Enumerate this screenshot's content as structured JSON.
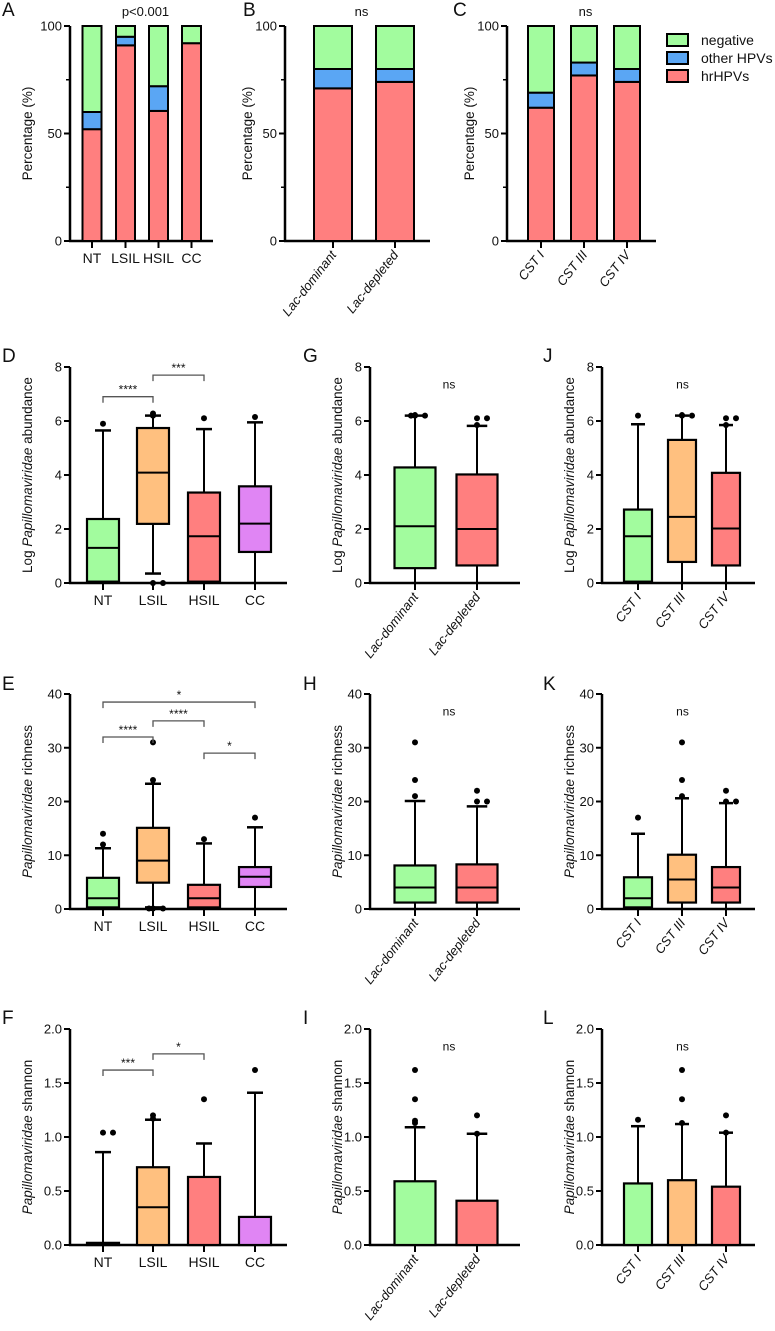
{
  "legend": {
    "items": [
      {
        "label": "negative",
        "color": "#a2fc9e"
      },
      {
        "label": "other HPVs",
        "color": "#5aa6f4"
      },
      {
        "label": "hrHPVs",
        "color": "#ff7f7f"
      }
    ]
  },
  "chart_data": [
    {
      "panel": "A",
      "type": "bar",
      "stacked": true,
      "annotation": "p<0.001",
      "ylabel": {
        "prefix": "Percentage (%)",
        "italic": "",
        "suffix": ""
      },
      "ylim": [
        0,
        100
      ],
      "yticks": [
        "0",
        "50",
        "100"
      ],
      "ytick_values": [
        0,
        50,
        100
      ],
      "minor_ticks": [
        25,
        75
      ],
      "categories": [
        "NT",
        "LSIL",
        "HSIL",
        "CC"
      ],
      "series": [
        {
          "name": "hrHPVs",
          "values": [
            52,
            91,
            60.5,
            92
          ]
        },
        {
          "name": "other HPVs",
          "values": [
            8,
            4,
            11.5,
            0
          ]
        },
        {
          "name": "negative",
          "values": [
            40,
            5,
            28,
            8
          ]
        }
      ]
    },
    {
      "panel": "B",
      "type": "bar",
      "stacked": true,
      "annotation": "ns",
      "ylabel": {
        "prefix": "Percentage (%)",
        "italic": "",
        "suffix": ""
      },
      "ylim": [
        0,
        100
      ],
      "yticks": [
        "0",
        "50",
        "100"
      ],
      "ytick_values": [
        0,
        50,
        100
      ],
      "minor_ticks": [
        25,
        75
      ],
      "categories": [
        "Lac-dominant",
        "Lac-depleted"
      ],
      "series": [
        {
          "name": "hrHPVs",
          "values": [
            71,
            74
          ]
        },
        {
          "name": "other HPVs",
          "values": [
            9,
            6
          ]
        },
        {
          "name": "negative",
          "values": [
            20,
            20
          ]
        }
      ]
    },
    {
      "panel": "C",
      "type": "bar",
      "stacked": true,
      "annotation": "ns",
      "ylabel": {
        "prefix": "Percentage (%)",
        "italic": "",
        "suffix": ""
      },
      "ylim": [
        0,
        100
      ],
      "yticks": [
        "0",
        "50",
        "100"
      ],
      "ytick_values": [
        0,
        50,
        100
      ],
      "minor_ticks": [
        25,
        75
      ],
      "categories": [
        "CST I",
        "CST III",
        "CST IV"
      ],
      "series": [
        {
          "name": "hrHPVs",
          "values": [
            62,
            77,
            74
          ]
        },
        {
          "name": "other HPVs",
          "values": [
            7,
            6,
            6
          ]
        },
        {
          "name": "negative",
          "values": [
            31,
            17,
            20
          ]
        }
      ]
    },
    {
      "panel": "D",
      "type": "box",
      "annotation": "",
      "ylabel": {
        "prefix": "Log ",
        "italic": "Papillomaviridae",
        "suffix": " abundance"
      },
      "ylim": [
        0,
        8
      ],
      "yticks": [
        "0",
        "2",
        "4",
        "6",
        "8"
      ],
      "ytick_values": [
        0,
        2,
        4,
        6,
        8
      ],
      "categories": [
        "NT",
        "LSIL",
        "HSIL",
        "CC"
      ],
      "colors": [
        "#a2fc9e",
        "#ffc07f",
        "#ff7f7f",
        "#e085f4"
      ],
      "boxes": [
        {
          "q1": 0.05,
          "median": 1.3,
          "q3": 2.37,
          "wlow": 0,
          "whigh": 5.65,
          "outliers": [
            5.9
          ]
        },
        {
          "q1": 2.19,
          "median": 4.09,
          "q3": 5.74,
          "wlow": 0.35,
          "whigh": 6.2,
          "outliers": [
            6.2,
            6.28,
            0,
            0
          ]
        },
        {
          "q1": 0.05,
          "median": 1.73,
          "q3": 3.35,
          "wlow": 0,
          "whigh": 5.7,
          "outliers": [
            6.1
          ]
        },
        {
          "q1": 1.15,
          "median": 2.2,
          "q3": 3.58,
          "wlow": 0,
          "whigh": 5.95,
          "outliers": [
            6.15
          ]
        }
      ],
      "comparisons": [
        {
          "from": 0,
          "to": 1,
          "label": "****",
          "y": 6.9
        },
        {
          "from": 1,
          "to": 2,
          "label": "***",
          "y": 7.7
        }
      ]
    },
    {
      "panel": "G",
      "type": "box",
      "annotation": "ns",
      "ylabel": {
        "prefix": "Log ",
        "italic": "Papillomaviridae",
        "suffix": " abundance"
      },
      "ylim": [
        0,
        8
      ],
      "yticks": [
        "0",
        "2",
        "4",
        "6",
        "8"
      ],
      "ytick_values": [
        0,
        2,
        4,
        6,
        8
      ],
      "categories": [
        "Lac-dominant",
        "Lac-depleted"
      ],
      "colors": [
        "#a2fc9e",
        "#ff7f7f"
      ],
      "boxes": [
        {
          "q1": 0.55,
          "median": 2.1,
          "q3": 4.28,
          "wlow": 0,
          "whigh": 6.2,
          "outliers": [
            6.2,
            6.22,
            6.2,
            6.2
          ]
        },
        {
          "q1": 0.65,
          "median": 2.0,
          "q3": 4.02,
          "wlow": 0,
          "whigh": 5.82,
          "outliers": [
            5.85,
            6.1,
            6.1
          ]
        }
      ],
      "comparisons": []
    },
    {
      "panel": "J",
      "type": "box",
      "annotation": "ns",
      "ylabel": {
        "prefix": "Log ",
        "italic": "Papillomaviridae",
        "suffix": " abundance"
      },
      "ylim": [
        0,
        8
      ],
      "yticks": [
        "0",
        "2",
        "4",
        "6",
        "8"
      ],
      "ytick_values": [
        0,
        2,
        4,
        6,
        8
      ],
      "categories": [
        "CST I",
        "CST III",
        "CST IV"
      ],
      "colors": [
        "#a2fc9e",
        "#ffc07f",
        "#ff7f7f"
      ],
      "boxes": [
        {
          "q1": 0.05,
          "median": 1.73,
          "q3": 2.72,
          "wlow": 0,
          "whigh": 5.88,
          "outliers": [
            6.2
          ]
        },
        {
          "q1": 0.78,
          "median": 2.45,
          "q3": 5.3,
          "wlow": 0,
          "whigh": 6.2,
          "outliers": [
            6.2,
            6.22,
            6.2
          ]
        },
        {
          "q1": 0.65,
          "median": 2.02,
          "q3": 4.08,
          "wlow": 0,
          "whigh": 5.85,
          "outliers": [
            5.85,
            6.1,
            6.1
          ]
        }
      ],
      "comparisons": []
    },
    {
      "panel": "E",
      "type": "box",
      "annotation": "",
      "ylabel": {
        "prefix": "",
        "italic": "Papillomaviridae",
        "suffix": " richness"
      },
      "ylim": [
        0,
        40
      ],
      "yticks": [
        "0",
        "10",
        "20",
        "30",
        "40"
      ],
      "ytick_values": [
        0,
        10,
        20,
        30,
        40
      ],
      "categories": [
        "NT",
        "LSIL",
        "HSIL",
        "CC"
      ],
      "colors": [
        "#a2fc9e",
        "#ffc07f",
        "#ff7f7f",
        "#e085f4"
      ],
      "boxes": [
        {
          "q1": 0.3,
          "median": 2,
          "q3": 5.8,
          "wlow": 0,
          "whigh": 11.3,
          "outliers": [
            12,
            14
          ]
        },
        {
          "q1": 4.9,
          "median": 9,
          "q3": 15.1,
          "wlow": 0.3,
          "whigh": 23.3,
          "outliers": [
            24,
            31,
            0.1,
            0.1,
            0.1
          ]
        },
        {
          "q1": 0.3,
          "median": 2,
          "q3": 4.5,
          "wlow": 0,
          "whigh": 12.2,
          "outliers": [
            13
          ]
        },
        {
          "q1": 4.1,
          "median": 6,
          "q3": 7.8,
          "wlow": 0,
          "whigh": 15.2,
          "outliers": [
            17
          ]
        }
      ],
      "comparisons": [
        {
          "from": 0,
          "to": 1,
          "label": "****",
          "y": 32
        },
        {
          "from": 1,
          "to": 2,
          "label": "****",
          "y": 35
        },
        {
          "from": 0,
          "to": 3,
          "label": "*",
          "y": 38.5
        },
        {
          "from": 2,
          "to": 3,
          "label": "*",
          "y": 29
        }
      ]
    },
    {
      "panel": "H",
      "type": "box",
      "annotation": "ns",
      "ylabel": {
        "prefix": "",
        "italic": "Papillomaviridae",
        "suffix": " richness"
      },
      "ylim": [
        0,
        40
      ],
      "yticks": [
        "0",
        "10",
        "20",
        "30",
        "40"
      ],
      "ytick_values": [
        0,
        10,
        20,
        30,
        40
      ],
      "categories": [
        "Lac-dominant",
        "Lac-depleted"
      ],
      "colors": [
        "#a2fc9e",
        "#ff7f7f"
      ],
      "boxes": [
        {
          "q1": 1.2,
          "median": 4,
          "q3": 8.1,
          "wlow": 0,
          "whigh": 20.1,
          "outliers": [
            21,
            24,
            31
          ]
        },
        {
          "q1": 1.2,
          "median": 4,
          "q3": 8.3,
          "wlow": 0,
          "whigh": 19.1,
          "outliers": [
            20,
            20,
            22
          ]
        }
      ],
      "comparisons": []
    },
    {
      "panel": "K",
      "type": "box",
      "annotation": "ns",
      "ylabel": {
        "prefix": "",
        "italic": "Papillomaviridae",
        "suffix": " richness"
      },
      "ylim": [
        0,
        40
      ],
      "yticks": [
        "0",
        "10",
        "20",
        "30",
        "40"
      ],
      "ytick_values": [
        0,
        10,
        20,
        30,
        40
      ],
      "categories": [
        "CST I",
        "CST III",
        "CST IV"
      ],
      "colors": [
        "#a2fc9e",
        "#ffc07f",
        "#ff7f7f"
      ],
      "boxes": [
        {
          "q1": 0.3,
          "median": 2,
          "q3": 5.9,
          "wlow": 0,
          "whigh": 14,
          "outliers": [
            17
          ]
        },
        {
          "q1": 1.2,
          "median": 5.5,
          "q3": 10.1,
          "wlow": 0,
          "whigh": 20.6,
          "outliers": [
            21,
            24,
            31
          ]
        },
        {
          "q1": 1.2,
          "median": 4,
          "q3": 7.8,
          "wlow": 0,
          "whigh": 19.7,
          "outliers": [
            20,
            20,
            22
          ]
        }
      ],
      "comparisons": []
    },
    {
      "panel": "F",
      "type": "box",
      "annotation": "",
      "ylabel": {
        "prefix": "",
        "italic": "Papillomaviridae",
        "suffix": " shannon"
      },
      "ylim": [
        0,
        2
      ],
      "yticks": [
        "0.0",
        "0.5",
        "1.0",
        "1.5",
        "2.0"
      ],
      "ytick_values": [
        0,
        0.5,
        1,
        1.5,
        2
      ],
      "categories": [
        "NT",
        "LSIL",
        "HSIL",
        "CC"
      ],
      "colors": [
        "#a2fc9e",
        "#ffc07f",
        "#ff7f7f",
        "#e085f4"
      ],
      "boxes": [
        {
          "q1": 0,
          "median": 0,
          "q3": 0.02,
          "wlow": 0,
          "whigh": 0.86,
          "outliers": [
            1.04,
            1.04
          ]
        },
        {
          "q1": 0,
          "median": 0.35,
          "q3": 0.72,
          "wlow": 0,
          "whigh": 1.16,
          "outliers": [
            1.17,
            1.2
          ]
        },
        {
          "q1": 0,
          "median": 0,
          "q3": 0.63,
          "wlow": 0,
          "whigh": 0.94,
          "outliers": [
            1.35
          ]
        },
        {
          "q1": 0,
          "median": 0,
          "q3": 0.26,
          "wlow": 0,
          "whigh": 1.41,
          "outliers": [
            1.62
          ]
        }
      ],
      "comparisons": [
        {
          "from": 0,
          "to": 1,
          "label": "***",
          "y": 1.62
        },
        {
          "from": 1,
          "to": 2,
          "label": "*",
          "y": 1.77
        }
      ]
    },
    {
      "panel": "I",
      "type": "box",
      "annotation": "ns",
      "ylabel": {
        "prefix": "",
        "italic": "Papillomaviridae",
        "suffix": " shannon"
      },
      "ylim": [
        0,
        2
      ],
      "yticks": [
        "0.0",
        "0.5",
        "1.0",
        "1.5",
        "2.0"
      ],
      "ytick_values": [
        0,
        0.5,
        1,
        1.5,
        2
      ],
      "categories": [
        "Lac-dominant",
        "Lac-depleted"
      ],
      "colors": [
        "#a2fc9e",
        "#ff7f7f"
      ],
      "boxes": [
        {
          "q1": 0,
          "median": 0,
          "q3": 0.59,
          "wlow": 0,
          "whigh": 1.09,
          "outliers": [
            1.13,
            1.15,
            1.35,
            1.62
          ]
        },
        {
          "q1": 0,
          "median": 0,
          "q3": 0.41,
          "wlow": 0,
          "whigh": 1.03,
          "outliers": [
            1.03,
            1.2
          ]
        }
      ],
      "comparisons": []
    },
    {
      "panel": "L",
      "type": "box",
      "annotation": "ns",
      "ylabel": {
        "prefix": "",
        "italic": "Papillomaviridae",
        "suffix": " shannon"
      },
      "ylim": [
        0,
        2
      ],
      "yticks": [
        "0.0",
        "0.5",
        "1.0",
        "1.5",
        "2.0"
      ],
      "ytick_values": [
        0,
        0.5,
        1,
        1.5,
        2
      ],
      "categories": [
        "CST I",
        "CST III",
        "CST IV"
      ],
      "colors": [
        "#a2fc9e",
        "#ffc07f",
        "#ff7f7f"
      ],
      "boxes": [
        {
          "q1": 0,
          "median": 0,
          "q3": 0.57,
          "wlow": 0,
          "whigh": 1.1,
          "outliers": [
            1.16
          ]
        },
        {
          "q1": 0,
          "median": 0,
          "q3": 0.6,
          "wlow": 0,
          "whigh": 1.12,
          "outliers": [
            1.13,
            1.35,
            1.62
          ]
        },
        {
          "q1": 0,
          "median": 0,
          "q3": 0.54,
          "wlow": 0,
          "whigh": 1.04,
          "outliers": [
            1.04,
            1.2
          ]
        }
      ],
      "comparisons": []
    }
  ]
}
